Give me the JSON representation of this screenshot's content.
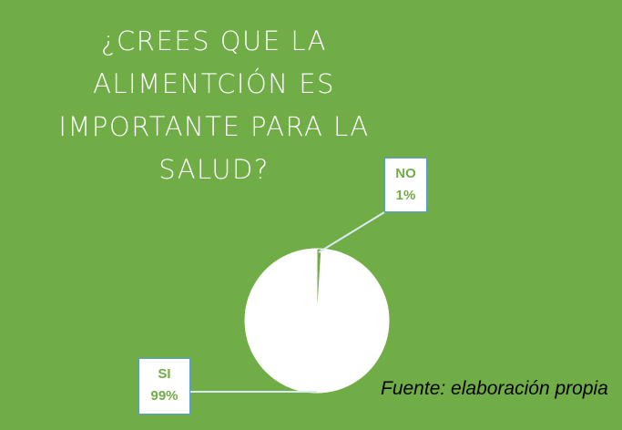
{
  "chart_data": {
    "type": "pie",
    "title": "¿CREES QUE LA ALIMENTCIÓN ES IMPORTANTE PARA LA SALUD?",
    "categories": [
      "SI",
      "NO"
    ],
    "values": [
      99,
      1
    ],
    "value_labels": [
      "99%",
      "1%"
    ],
    "colors": [
      "#ffffff",
      "#70ad47"
    ],
    "annotation": "Fuente: elaboración propia"
  }
}
